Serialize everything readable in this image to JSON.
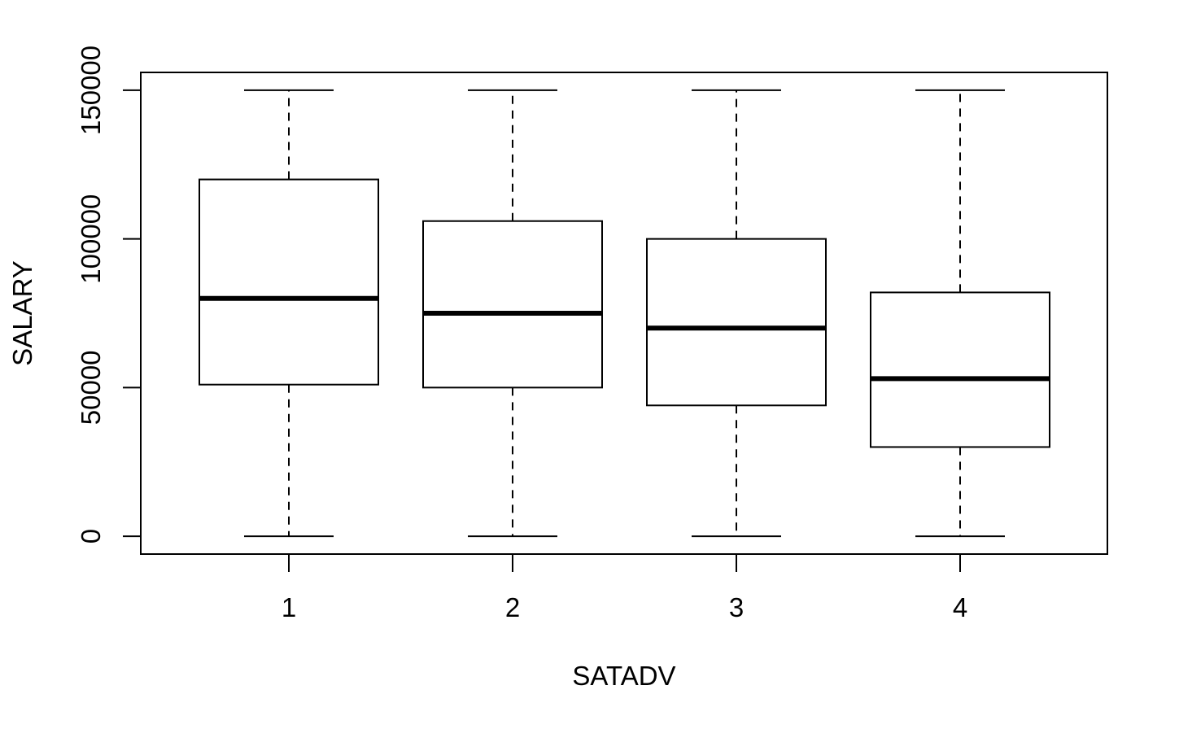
{
  "chart_data": {
    "type": "boxplot",
    "title": "",
    "xlabel": "SATADV",
    "ylabel": "SALARY",
    "categories": [
      "1",
      "2",
      "3",
      "4"
    ],
    "boxes": [
      {
        "category": "1",
        "min": 0,
        "q1": 51000,
        "median": 80000,
        "q3": 120000,
        "max": 150000
      },
      {
        "category": "2",
        "min": 0,
        "q1": 50000,
        "median": 75000,
        "q3": 106000,
        "max": 150000
      },
      {
        "category": "3",
        "min": 0,
        "q1": 44000,
        "median": 70000,
        "q3": 100000,
        "max": 150000
      },
      {
        "category": "4",
        "min": 0,
        "q1": 30000,
        "median": 53000,
        "q3": 82000,
        "max": 150000
      }
    ],
    "y_ticks": [
      0,
      50000,
      100000,
      150000
    ],
    "y_tick_labels": [
      "0",
      "50000",
      "100000",
      "150000"
    ],
    "ylim": [
      -6000,
      156000
    ],
    "grid": false,
    "colors": {
      "stroke": "#000000",
      "fill": "#ffffff"
    }
  }
}
